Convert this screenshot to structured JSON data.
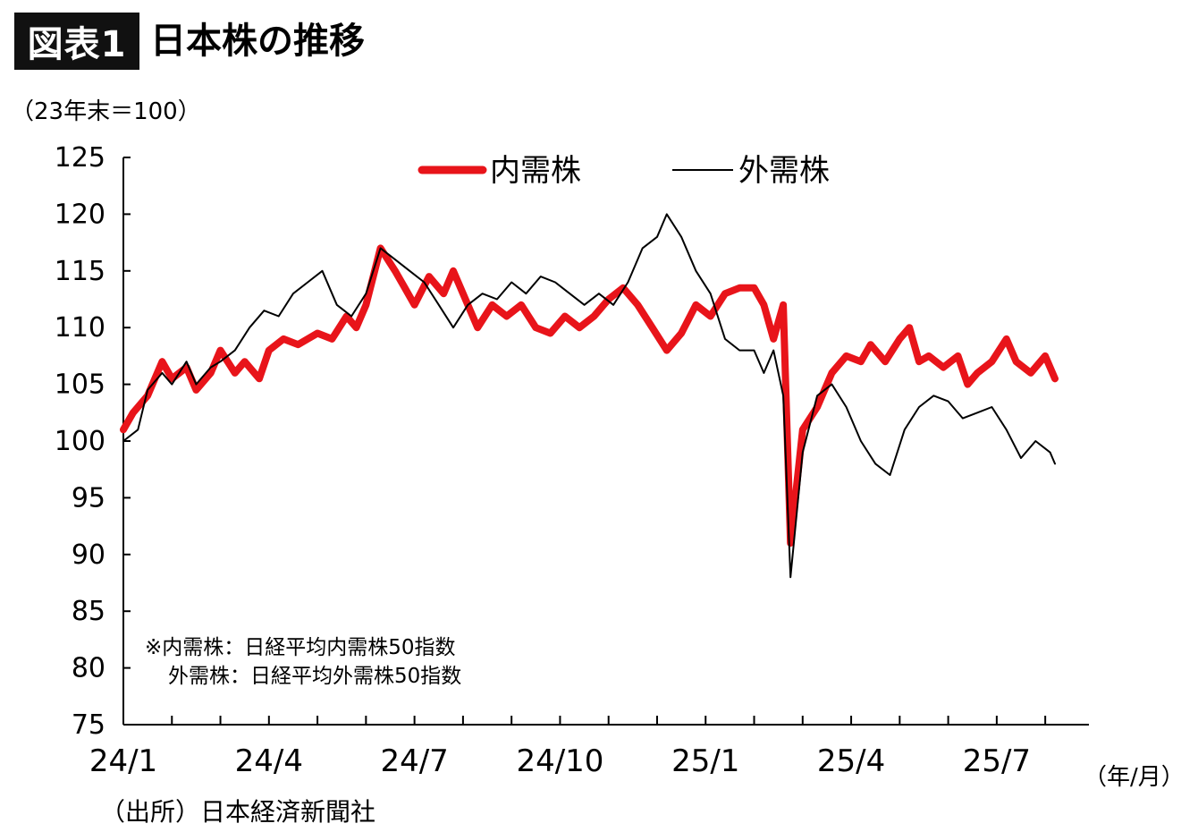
{
  "title_badge": "図表1",
  "title": "日本株の推移",
  "unit_label": "（23年末＝100）",
  "x_unit_label": "（年/月）",
  "source": "（出所）日本経済新聞社",
  "notes": [
    "※内需株：日経平均内需株50指数",
    "外需株：日経平均外需株50指数"
  ],
  "colors": {
    "domestic": "#e8141a",
    "foreign": "#000000",
    "axis": "#000000"
  },
  "chart_data": {
    "type": "line",
    "x_tick_labels": [
      "24/1",
      "24/4",
      "24/7",
      "24/10",
      "25/1",
      "25/4",
      "25/7"
    ],
    "y_ticks": [
      75,
      80,
      85,
      90,
      95,
      100,
      105,
      110,
      115,
      120,
      125
    ],
    "ylim": [
      75,
      125
    ],
    "xlim": [
      0,
      19.2
    ],
    "x_unit": "months since 24/1",
    "legend_placement": "top-center",
    "series": [
      {
        "name": "内需株",
        "color": "#e8141a",
        "points": [
          [
            0,
            101
          ],
          [
            0.2,
            102.5
          ],
          [
            0.5,
            104
          ],
          [
            0.8,
            107
          ],
          [
            1,
            105.5
          ],
          [
            1.3,
            106.5
          ],
          [
            1.5,
            104.5
          ],
          [
            1.8,
            106
          ],
          [
            2,
            108
          ],
          [
            2.3,
            106
          ],
          [
            2.5,
            107
          ],
          [
            2.8,
            105.5
          ],
          [
            3,
            108
          ],
          [
            3.3,
            109
          ],
          [
            3.6,
            108.5
          ],
          [
            4,
            109.5
          ],
          [
            4.3,
            109
          ],
          [
            4.6,
            111
          ],
          [
            4.8,
            110
          ],
          [
            5,
            112
          ],
          [
            5.3,
            117
          ],
          [
            5.6,
            115
          ],
          [
            5.8,
            113.5
          ],
          [
            6,
            112
          ],
          [
            6.3,
            114.5
          ],
          [
            6.6,
            113
          ],
          [
            6.8,
            115
          ],
          [
            7,
            113
          ],
          [
            7.3,
            110
          ],
          [
            7.6,
            112
          ],
          [
            7.9,
            111
          ],
          [
            8.2,
            112
          ],
          [
            8.5,
            110
          ],
          [
            8.8,
            109.5
          ],
          [
            9.1,
            111
          ],
          [
            9.4,
            110
          ],
          [
            9.7,
            111
          ],
          [
            10,
            112.5
          ],
          [
            10.3,
            113.5
          ],
          [
            10.6,
            112
          ],
          [
            10.9,
            110
          ],
          [
            11.2,
            108
          ],
          [
            11.5,
            109.5
          ],
          [
            11.8,
            112
          ],
          [
            12.1,
            111
          ],
          [
            12.4,
            113
          ],
          [
            12.7,
            113.5
          ],
          [
            13,
            113.5
          ],
          [
            13.2,
            112
          ],
          [
            13.4,
            109
          ],
          [
            13.6,
            112
          ],
          [
            13.75,
            91
          ],
          [
            14,
            101
          ],
          [
            14.3,
            103
          ],
          [
            14.6,
            106
          ],
          [
            14.9,
            107.5
          ],
          [
            15.2,
            107
          ],
          [
            15.4,
            108.5
          ],
          [
            15.7,
            107
          ],
          [
            16,
            109
          ],
          [
            16.2,
            110
          ],
          [
            16.4,
            107
          ],
          [
            16.6,
            107.5
          ],
          [
            16.9,
            106.5
          ],
          [
            17.2,
            107.5
          ],
          [
            17.4,
            105
          ],
          [
            17.6,
            106
          ],
          [
            17.9,
            107
          ],
          [
            18.2,
            109
          ],
          [
            18.4,
            107
          ],
          [
            18.7,
            106
          ],
          [
            19,
            107.5
          ],
          [
            19.2,
            105.5
          ]
        ]
      },
      {
        "name": "外需株",
        "color": "#000000",
        "points": [
          [
            0,
            100
          ],
          [
            0.3,
            101
          ],
          [
            0.5,
            104.5
          ],
          [
            0.8,
            106
          ],
          [
            1,
            105
          ],
          [
            1.3,
            107
          ],
          [
            1.5,
            105
          ],
          [
            1.8,
            106.5
          ],
          [
            2,
            107
          ],
          [
            2.3,
            108
          ],
          [
            2.6,
            110
          ],
          [
            2.9,
            111.5
          ],
          [
            3.2,
            111
          ],
          [
            3.5,
            113
          ],
          [
            3.8,
            114
          ],
          [
            4.1,
            115
          ],
          [
            4.4,
            112
          ],
          [
            4.7,
            111
          ],
          [
            5,
            113
          ],
          [
            5.3,
            117
          ],
          [
            5.6,
            116
          ],
          [
            5.9,
            115
          ],
          [
            6.2,
            114
          ],
          [
            6.5,
            112
          ],
          [
            6.8,
            110
          ],
          [
            7.1,
            112
          ],
          [
            7.4,
            113
          ],
          [
            7.7,
            112.5
          ],
          [
            8,
            114
          ],
          [
            8.3,
            113
          ],
          [
            8.6,
            114.5
          ],
          [
            8.9,
            114
          ],
          [
            9.2,
            113
          ],
          [
            9.5,
            112
          ],
          [
            9.8,
            113
          ],
          [
            10.1,
            112
          ],
          [
            10.4,
            114
          ],
          [
            10.7,
            117
          ],
          [
            11,
            118
          ],
          [
            11.2,
            120
          ],
          [
            11.5,
            118
          ],
          [
            11.8,
            115
          ],
          [
            12.1,
            113
          ],
          [
            12.4,
            109
          ],
          [
            12.7,
            108
          ],
          [
            13,
            108
          ],
          [
            13.2,
            106
          ],
          [
            13.4,
            108
          ],
          [
            13.6,
            104
          ],
          [
            13.75,
            88
          ],
          [
            14,
            99
          ],
          [
            14.3,
            104
          ],
          [
            14.6,
            105
          ],
          [
            14.9,
            103
          ],
          [
            15.2,
            100
          ],
          [
            15.5,
            98
          ],
          [
            15.8,
            97
          ],
          [
            16.1,
            101
          ],
          [
            16.4,
            103
          ],
          [
            16.7,
            104
          ],
          [
            17,
            103.5
          ],
          [
            17.3,
            102
          ],
          [
            17.6,
            102.5
          ],
          [
            17.9,
            103
          ],
          [
            18.2,
            101
          ],
          [
            18.5,
            98.5
          ],
          [
            18.8,
            100
          ],
          [
            19.1,
            99
          ],
          [
            19.2,
            98
          ]
        ]
      }
    ]
  }
}
